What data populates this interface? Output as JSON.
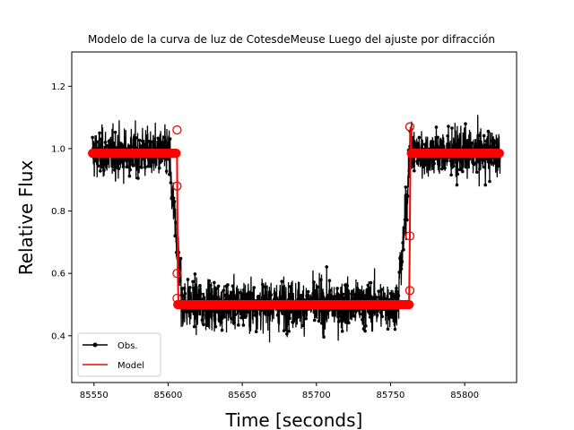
{
  "chart_data": {
    "type": "line",
    "title": "Modelo de la curva de luz de CotesdeMeuse Luego del ajuste por difracción",
    "xlabel": "Time [seconds]",
    "ylabel": "Relative Flux",
    "xlim": [
      85535,
      85835
    ],
    "ylim": [
      0.25,
      1.31
    ],
    "xticks": [
      85550,
      85600,
      85650,
      85700,
      85750,
      85800
    ],
    "yticks": [
      0.4,
      0.6,
      0.8,
      1.0,
      1.2
    ],
    "xtick_labels": [
      "85550",
      "85600",
      "85650",
      "85700",
      "85750",
      "85800"
    ],
    "ytick_labels": [
      "0.4",
      "0.6",
      "0.8",
      "1.0",
      "1.2"
    ],
    "legend": {
      "position": "lower-left",
      "entries": [
        "Obs.",
        "Model"
      ]
    },
    "series": [
      {
        "name": "Obs.",
        "color": "#000000",
        "marker": "dot",
        "description_levels": {
          "baseline": 0.985,
          "occulted": 0.5,
          "noise_sigma": 0.065
        },
        "x": [
          85549,
          85552,
          85555,
          85558,
          85561,
          85564,
          85567,
          85570,
          85573,
          85576,
          85579,
          85582,
          85585,
          85588,
          85591,
          85594,
          85597,
          85600,
          85602,
          85604,
          85606,
          85608,
          85610,
          85613,
          85616,
          85620,
          85625,
          85630,
          85635,
          85640,
          85645,
          85650,
          85655,
          85660,
          85665,
          85670,
          85675,
          85680,
          85685,
          85690,
          85695,
          85700,
          85705,
          85710,
          85715,
          85720,
          85725,
          85730,
          85735,
          85740,
          85745,
          85750,
          85755,
          85758,
          85760,
          85762,
          85763,
          85765,
          85768,
          85771,
          85774,
          85777,
          85780,
          85783,
          85786,
          85789,
          85792,
          85795,
          85798,
          85801,
          85804,
          85807,
          85810,
          85813,
          85816,
          85819,
          85822,
          85824
        ],
        "y": [
          0.99,
          1.05,
          0.93,
          1.1,
          0.96,
          1.02,
          0.9,
          1.12,
          0.97,
          1.04,
          0.92,
          1.08,
          0.95,
          1.01,
          0.94,
          1.06,
          0.97,
          0.96,
          0.88,
          0.8,
          0.7,
          0.62,
          0.56,
          0.52,
          0.48,
          0.53,
          0.46,
          0.55,
          0.44,
          0.51,
          0.47,
          0.56,
          0.45,
          0.52,
          0.49,
          0.54,
          0.43,
          0.5,
          0.47,
          0.55,
          0.46,
          0.52,
          0.44,
          0.51,
          0.48,
          0.53,
          0.45,
          0.5,
          0.47,
          0.54,
          0.49,
          0.52,
          0.58,
          0.66,
          0.78,
          0.9,
          0.96,
          1.02,
          0.94,
          1.09,
          0.97,
          1.03,
          0.91,
          1.07,
          0.98,
          1.04,
          0.93,
          1.1,
          0.96,
          1.01,
          0.92,
          1.06,
          0.99,
          1.03,
          0.94,
          1.08,
          0.97,
          0.99
        ]
      },
      {
        "name": "Model",
        "color": "#ff0000",
        "marker": "circle",
        "x": [
          85549,
          85560,
          85570,
          85580,
          85590,
          85600,
          85604,
          85606,
          85606.5,
          85607,
          85620,
          85640,
          85660,
          85680,
          85700,
          85720,
          85740,
          85760,
          85762.5,
          85763,
          85763.5,
          85764,
          85780,
          85800,
          85824
        ],
        "y": [
          0.985,
          0.985,
          0.985,
          0.985,
          0.985,
          0.985,
          0.985,
          0.985,
          0.6,
          0.5,
          0.5,
          0.5,
          0.5,
          0.5,
          0.5,
          0.5,
          0.5,
          0.5,
          0.5,
          0.72,
          1.07,
          0.985,
          0.985,
          0.985,
          0.985
        ]
      }
    ]
  }
}
